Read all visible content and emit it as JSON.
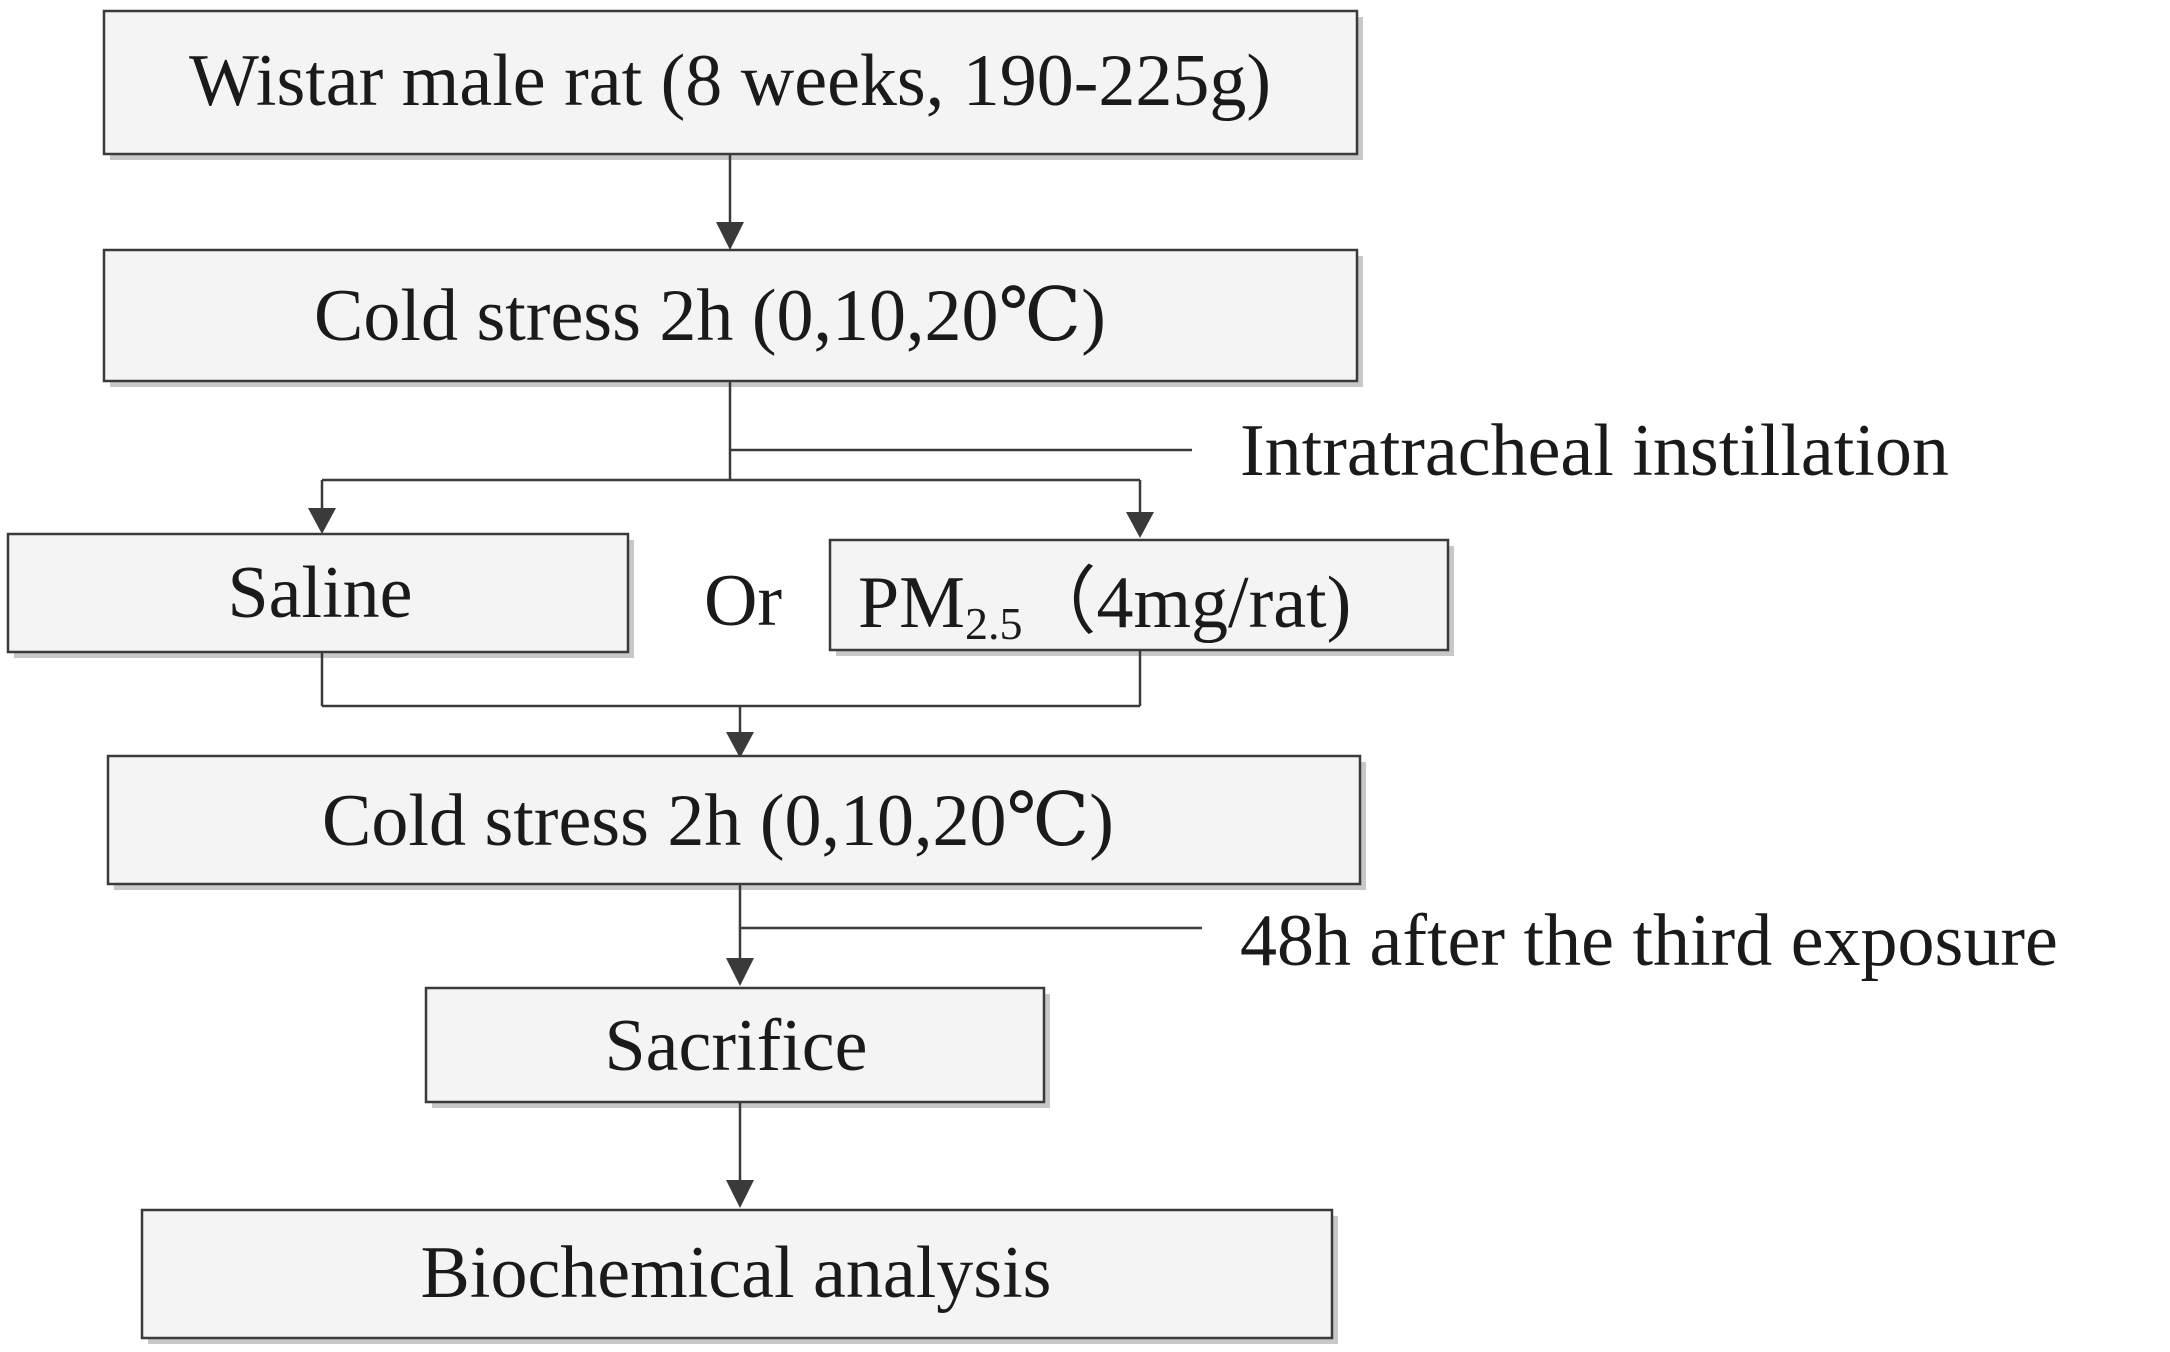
{
  "nodes": {
    "rat": "Wistar male rat (8 weeks, 190-225g)",
    "cold1": "Cold stress 2h (0,10,20℃)",
    "saline": "Saline",
    "pm_prefix": "PM",
    "pm_sub": "2.5",
    "pm_dose": "（4mg/rat)",
    "cold2": "Cold stress 2h (0,10,20℃)",
    "sacrifice": "Sacrifice",
    "analysis": "Biochemical analysis"
  },
  "annotations": {
    "instillation": "Intratracheal instillation",
    "or": "Or",
    "timing": "48h after the third exposure"
  }
}
